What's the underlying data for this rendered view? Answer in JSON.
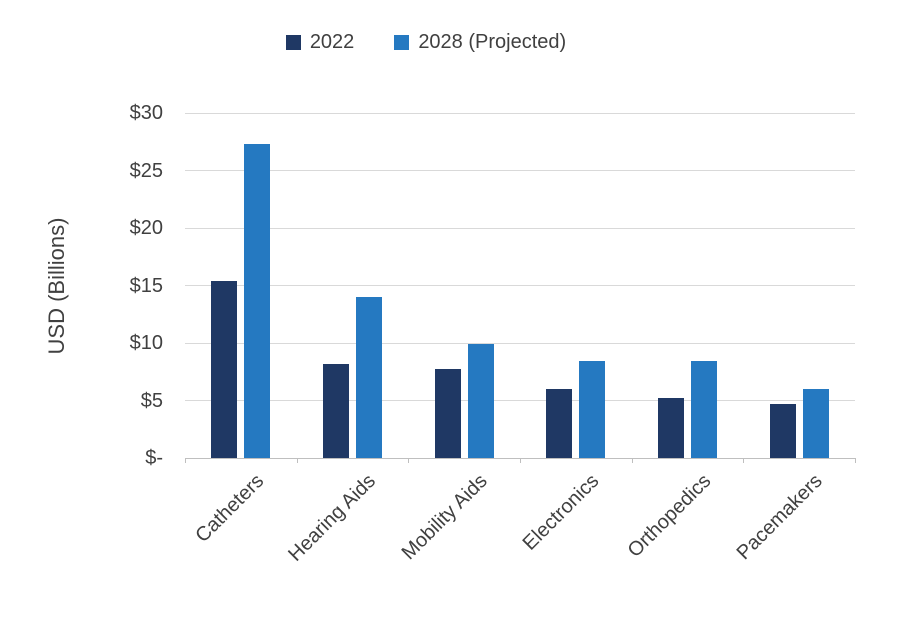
{
  "chart_data": {
    "type": "bar",
    "title": "",
    "categories": [
      "Catheters",
      "Hearing Aids",
      "Mobility Aids",
      "Electronics",
      "Orthopedics",
      "Pacemakers"
    ],
    "series": [
      {
        "name": "2022",
        "color": "#1f3864",
        "values": [
          15.4,
          8.2,
          7.7,
          6.0,
          5.2,
          4.7
        ]
      },
      {
        "name": "2028 (Projected)",
        "color": "#2579c1",
        "values": [
          27.3,
          14.0,
          9.9,
          8.4,
          8.4,
          6.0
        ]
      }
    ],
    "xlabel": "",
    "ylabel": "USD (Billions)",
    "ylim": [
      0,
      30
    ],
    "yticks": [
      0,
      5,
      10,
      15,
      20,
      25,
      30
    ],
    "ytick_labels": [
      "$-",
      "$5",
      "$10",
      "$15",
      "$20",
      "$25",
      "$30"
    ],
    "grid": true,
    "legend_position": "top"
  }
}
